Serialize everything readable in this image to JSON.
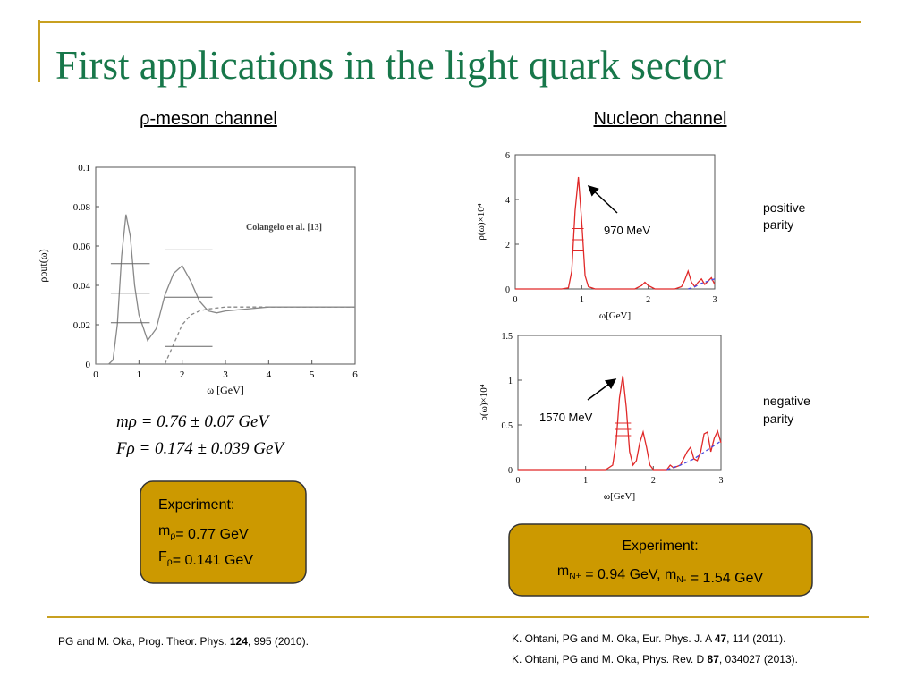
{
  "title": "First applications in the light quark sector",
  "headings": [
    "ρ-meson channel",
    "Nucleon channel"
  ],
  "formulas": [
    "mρ = 0.76 ± 0.07 GeV",
    "Fρ = 0.174 ± 0.039 GeV"
  ],
  "parity_labels": [
    [
      "positive",
      "parity"
    ],
    [
      "negative",
      "parity"
    ]
  ],
  "experiment_boxes": [
    {
      "heading": "Experiment:",
      "lines": [
        [
          {
            "t": "m"
          },
          {
            "sub": "ρ"
          },
          {
            "t": "= 0.77 GeV"
          }
        ],
        [
          {
            "t": "F"
          },
          {
            "sub": "ρ"
          },
          {
            "t": "= 0.141 GeV"
          }
        ]
      ]
    },
    {
      "heading": "Experiment:",
      "lines": [
        [
          {
            "t": "m"
          },
          {
            "sub": "N+"
          },
          {
            "t": " = 0.94 GeV, m"
          },
          {
            "sub": "N-"
          },
          {
            "t": " = 1.54 GeV"
          }
        ]
      ]
    }
  ],
  "references": [
    [
      {
        "t": "PG and M. Oka, Prog. Theor. Phys. "
      },
      {
        "b": "124"
      },
      {
        "t": ", 995 (2010)."
      }
    ],
    [
      {
        "t": "K. Ohtani, PG and M. Oka, Eur. Phys. J. A "
      },
      {
        "b": "47"
      },
      {
        "t": ", 114 (2011)."
      }
    ],
    [
      {
        "t": "K. Ohtani, PG and M. Oka, Phys. Rev. D "
      },
      {
        "b": "87"
      },
      {
        "t": ", 034027 (2013)."
      }
    ]
  ],
  "chart_data": [
    {
      "type": "line",
      "x_label": "ω [GeV]",
      "y_label": "ρout(ω)",
      "annotation": "Colangelo et al. [13]",
      "xlim": [
        0,
        6
      ],
      "xticks": [
        0,
        1,
        2,
        3,
        4,
        5,
        6
      ],
      "ylim": [
        0,
        0.1
      ],
      "yticks": [
        0,
        0.02,
        0.04,
        0.06,
        0.08,
        0.1
      ],
      "series": [
        {
          "color": "#888888",
          "dash": false,
          "x": [
            0,
            0.3,
            0.4,
            0.5,
            0.6,
            0.7,
            0.8,
            0.9,
            1.0,
            1.2,
            1.4,
            1.6,
            1.8,
            2.0,
            2.2,
            2.4,
            2.6,
            2.8,
            3.0,
            3.5,
            4.0,
            5.0,
            6.0
          ],
          "values": [
            0,
            0,
            0.002,
            0.02,
            0.055,
            0.076,
            0.065,
            0.04,
            0.025,
            0.012,
            0.018,
            0.035,
            0.046,
            0.05,
            0.042,
            0.032,
            0.027,
            0.026,
            0.027,
            0.028,
            0.029,
            0.029,
            0.029
          ]
        },
        {
          "color": "#888888",
          "dash": true,
          "x": [
            1.6,
            1.8,
            2.0,
            2.2,
            2.4,
            2.6,
            3.0,
            4.0,
            5.0,
            6.0
          ],
          "values": [
            0,
            0.01,
            0.02,
            0.025,
            0.027,
            0.028,
            0.029,
            0.029,
            0.029,
            0.029
          ]
        }
      ],
      "error_color": "#666666",
      "error_lines": [
        {
          "y": 0.051,
          "xmin": 0.35,
          "xmax": 1.25
        },
        {
          "y": 0.036,
          "xmin": 0.35,
          "xmax": 1.25
        },
        {
          "y": 0.021,
          "xmin": 0.35,
          "xmax": 1.25
        },
        {
          "y": 0.058,
          "xmin": 1.6,
          "xmax": 2.7
        },
        {
          "y": 0.034,
          "xmin": 1.6,
          "xmax": 2.7
        },
        {
          "y": 0.009,
          "xmin": 1.6,
          "xmax": 2.7
        }
      ]
    },
    {
      "type": "line",
      "x_label": "ω[GeV]",
      "y_label": "ρ(ω)×10⁴",
      "annotation": "970 MeV",
      "xlim": [
        0,
        3
      ],
      "xticks": [
        0,
        1,
        2,
        3
      ],
      "ylim": [
        0,
        6
      ],
      "yticks": [
        0,
        2,
        4,
        6
      ],
      "series": [
        {
          "color": "#e02828",
          "dash": false,
          "x": [
            0,
            0.7,
            0.8,
            0.85,
            0.9,
            0.95,
            1.0,
            1.05,
            1.1,
            1.2,
            1.5,
            1.8,
            1.9,
            1.95,
            2.0,
            2.1,
            2.4,
            2.5,
            2.55,
            2.6,
            2.65,
            2.7,
            2.75,
            2.8,
            2.85,
            2.9,
            2.95,
            3.0
          ],
          "values": [
            0,
            0,
            0.05,
            0.8,
            3.5,
            5.0,
            3.0,
            0.6,
            0.1,
            0,
            0,
            0,
            0.15,
            0.3,
            0.15,
            0,
            0,
            0.1,
            0.4,
            0.8,
            0.3,
            0.1,
            0.3,
            0.45,
            0.2,
            0.35,
            0.5,
            0.2
          ]
        },
        {
          "color": "#4a4ae0",
          "dash": true,
          "x": [
            2.6,
            2.7,
            2.8,
            2.9,
            3.0
          ],
          "values": [
            0,
            0.1,
            0.25,
            0.35,
            0.45
          ]
        }
      ],
      "error_color": "#e02828",
      "error_lines": [
        {
          "y": 2.7,
          "xmin": 0.85,
          "xmax": 1.03
        },
        {
          "y": 2.2,
          "xmin": 0.85,
          "xmax": 1.03
        },
        {
          "y": 1.7,
          "xmin": 0.85,
          "xmax": 1.03
        }
      ]
    },
    {
      "type": "line",
      "x_label": "ω[GeV]",
      "y_label": "ρ(ω)×10⁴",
      "annotation": "1570 MeV",
      "xlim": [
        0,
        3
      ],
      "xticks": [
        0,
        1,
        2,
        3
      ],
      "ylim": [
        0,
        1.5
      ],
      "yticks": [
        0,
        0.5,
        1,
        1.5
      ],
      "series": [
        {
          "color": "#e02828",
          "dash": false,
          "x": [
            0,
            1.3,
            1.4,
            1.45,
            1.5,
            1.55,
            1.6,
            1.65,
            1.7,
            1.75,
            1.8,
            1.85,
            1.9,
            1.95,
            2.0,
            2.2,
            2.25,
            2.3,
            2.4,
            2.5,
            2.55,
            2.6,
            2.65,
            2.7,
            2.75,
            2.8,
            2.85,
            2.9,
            2.95,
            3.0
          ],
          "values": [
            0,
            0,
            0.05,
            0.3,
            0.8,
            1.05,
            0.7,
            0.2,
            0.05,
            0.1,
            0.3,
            0.42,
            0.25,
            0.05,
            0,
            0,
            0.05,
            0.02,
            0.05,
            0.2,
            0.25,
            0.12,
            0.1,
            0.2,
            0.4,
            0.42,
            0.2,
            0.35,
            0.43,
            0.3
          ]
        },
        {
          "color": "#4a4ae0",
          "dash": true,
          "x": [
            2.2,
            2.4,
            2.6,
            2.8,
            3.0
          ],
          "values": [
            0,
            0.05,
            0.12,
            0.22,
            0.32
          ]
        }
      ],
      "error_color": "#e02828",
      "error_lines": [
        {
          "y": 0.52,
          "xmin": 1.43,
          "xmax": 1.67
        },
        {
          "y": 0.45,
          "xmin": 1.43,
          "xmax": 1.67
        },
        {
          "y": 0.38,
          "xmin": 1.43,
          "xmax": 1.67
        }
      ]
    }
  ]
}
